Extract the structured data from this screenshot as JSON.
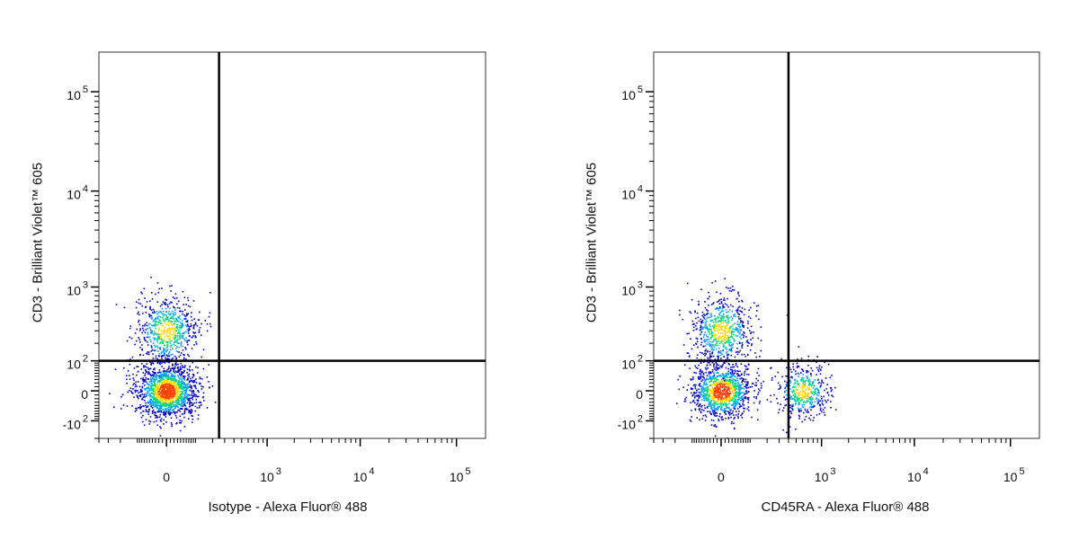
{
  "chart_data": [
    {
      "type": "scatter",
      "subtype": "flow-cytometry density dot plot (biexponential axes)",
      "xlabel": "Isotype - Alexa Fluor® 488",
      "ylabel": "CD3 - Brilliant Violet™ 605",
      "x_tick_labels": [
        "0",
        "10^3",
        "10^4",
        "10^5"
      ],
      "y_tick_labels": [
        "-10^2",
        "0",
        "10^2",
        "10^3",
        "10^4",
        "10^5"
      ],
      "x_ticks": [
        0,
        1000,
        10000,
        100000
      ],
      "y_ticks": [
        -100,
        0,
        100,
        1000,
        10000,
        100000
      ],
      "xlim": [
        -400,
        200000
      ],
      "ylim": [
        -200,
        250000
      ],
      "gate_x": 250,
      "gate_y": 100,
      "colormap": [
        "#0000c8",
        "#00a0ff",
        "#00d880",
        "#ffd800",
        "#ff4000"
      ],
      "populations": [
        {
          "x_center": 0,
          "y_center": 0,
          "n": 1500
        },
        {
          "x_center": 0,
          "y_center": 300,
          "n": 650
        }
      ]
    },
    {
      "type": "scatter",
      "subtype": "flow-cytometry density dot plot (biexponential axes)",
      "xlabel": "CD45RA - Alexa Fluor® 488",
      "ylabel": "CD3 - Brilliant Violet™ 605",
      "x_tick_labels": [
        "0",
        "10^3",
        "10^4",
        "10^5"
      ],
      "y_tick_labels": [
        "-10^2",
        "0",
        "10^2",
        "10^3",
        "10^4",
        "10^5"
      ],
      "x_ticks": [
        0,
        1000,
        10000,
        100000
      ],
      "y_ticks": [
        -100,
        0,
        100,
        1000,
        10000,
        100000
      ],
      "xlim": [
        -400,
        200000
      ],
      "ylim": [
        -200,
        250000
      ],
      "gate_x": 400,
      "gate_y": 100,
      "colormap": [
        "#0000c8",
        "#00a0ff",
        "#00d880",
        "#ffd800",
        "#ff4000"
      ],
      "populations": [
        {
          "x_center": 0,
          "y_center": 0,
          "n": 1100
        },
        {
          "x_center": 0,
          "y_center": 300,
          "n": 650
        },
        {
          "x_center": 600,
          "y_center": 0,
          "n": 450
        }
      ]
    }
  ]
}
